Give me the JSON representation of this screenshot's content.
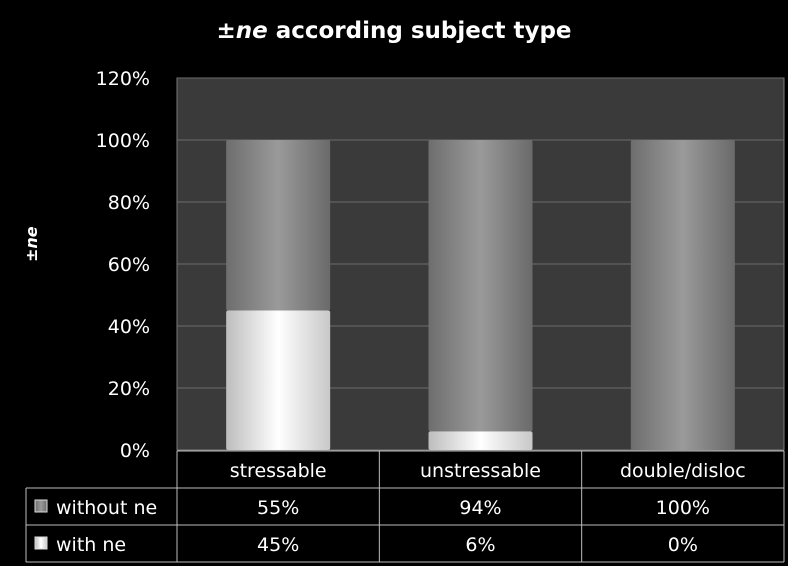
{
  "chart_data": {
    "type": "bar",
    "stacked": true,
    "title_prefix": "±",
    "title_italic": "ne",
    "title_rest": " according subject type",
    "ylabel": "±ne",
    "xlabel": "",
    "categories": [
      "stressable",
      "unstressable",
      "double/disloc"
    ],
    "series": [
      {
        "name": "with ne",
        "values": [
          45,
          6,
          0
        ],
        "color": "#e8e8e8"
      },
      {
        "name": "without ne",
        "values": [
          55,
          94,
          100
        ],
        "color": "#8a8a8a"
      }
    ],
    "table_labels": {
      "with ne": [
        "45%",
        "6%",
        "0%"
      ],
      "without ne": [
        "55%",
        "94%",
        "100%"
      ]
    },
    "yticks": [
      "0%",
      "20%",
      "40%",
      "60%",
      "80%",
      "100%",
      "120%"
    ],
    "ylim": [
      0,
      120
    ],
    "grid": true,
    "legend": "data-table"
  }
}
